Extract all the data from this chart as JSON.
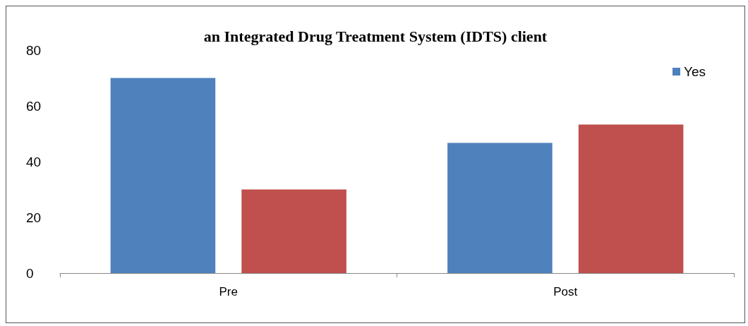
{
  "chart_data": {
    "type": "bar",
    "title": "an Integrated Drug Treatment System (IDTS) client",
    "categories": [
      "Pre",
      "Post"
    ],
    "series": [
      {
        "name": "Yes",
        "color": "#4f81bd",
        "values": [
          70,
          46.7
        ]
      },
      {
        "color": "#c0504d",
        "values": [
          30,
          53.3
        ]
      }
    ],
    "ylim": [
      0,
      80
    ],
    "yticks": [
      0,
      20,
      40,
      60,
      80
    ],
    "grid": false,
    "legend": "top right"
  }
}
